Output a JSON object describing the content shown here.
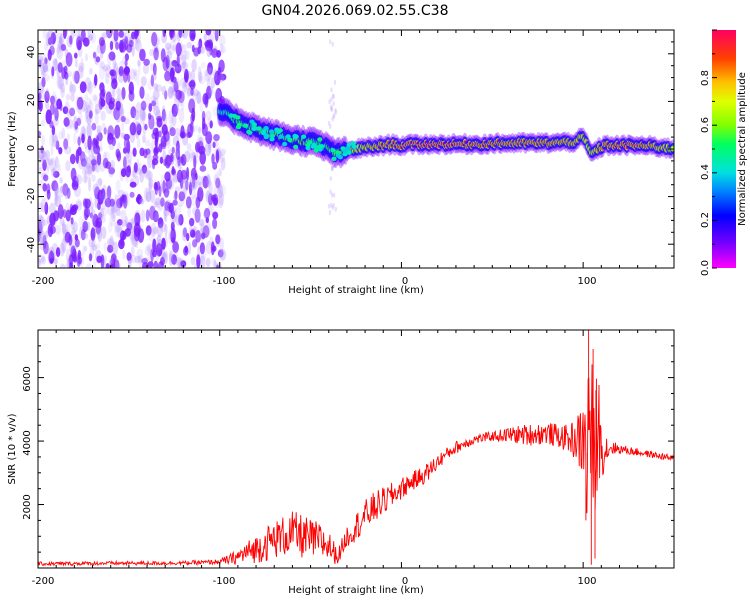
{
  "title": "GN04.2026.069.02.55.C38",
  "chart_data": [
    {
      "type": "heatmap",
      "xlabel": "Height of straight line (km)",
      "ylabel": "Frequency (Hz)",
      "xlim": [
        -200,
        150
      ],
      "ylim": [
        -50,
        50
      ],
      "x_ticks": [
        "-200",
        "-100",
        "0",
        "100"
      ],
      "y_ticks": [
        "-40",
        "-20",
        "0",
        "20",
        "40"
      ],
      "colorbar": {
        "label": "Normalized spectral amplitude",
        "range": [
          0,
          1
        ],
        "ticks": [
          "0.0",
          "0.2",
          "0.4",
          "0.6",
          "0.8"
        ]
      },
      "noise_region_x": [
        -200,
        -100
      ],
      "ridge": {
        "x": [
          -100,
          -95,
          -90,
          -85,
          -80,
          -75,
          -70,
          -65,
          -60,
          -55,
          -50,
          -45,
          -40,
          -35,
          -30,
          -25,
          -20,
          -15,
          -10,
          -5,
          0,
          10,
          20,
          40,
          60,
          80,
          95,
          100,
          103,
          105,
          108,
          112,
          120,
          130,
          140,
          150
        ],
        "freq": [
          16,
          14,
          12,
          10,
          8.5,
          7,
          6,
          5,
          4,
          3.5,
          3,
          2,
          0,
          -2,
          -1,
          0,
          0.5,
          1,
          1.5,
          2,
          1.5,
          2,
          2,
          2,
          2.5,
          2.5,
          3,
          5,
          0,
          -2,
          0,
          1.5,
          1.5,
          1.5,
          1,
          0
        ],
        "amplitude": [
          0.45,
          0.5,
          0.55,
          0.55,
          0.55,
          0.6,
          0.6,
          0.55,
          0.6,
          0.6,
          0.55,
          0.5,
          0.55,
          0.6,
          0.65,
          0.7,
          0.75,
          0.8,
          0.85,
          0.85,
          0.9,
          0.95,
          0.95,
          0.9,
          0.85,
          0.85,
          0.8,
          0.75,
          0.7,
          0.75,
          0.8,
          0.85,
          0.9,
          0.9,
          0.8,
          0.7
        ]
      }
    },
    {
      "type": "line",
      "xlabel": "Height of straight line (km)",
      "ylabel": "SNR (10 * v/v)",
      "xlim": [
        -200,
        150
      ],
      "ylim": [
        0,
        7500
      ],
      "x_ticks": [
        "-200",
        "-100",
        "0",
        "100"
      ],
      "y_ticks": [
        "2000",
        "4000",
        "6000"
      ],
      "color": "#ff0000",
      "series": [
        {
          "x": [
            -200,
            -180,
            -160,
            -140,
            -120,
            -110,
            -100,
            -95,
            -90,
            -85,
            -80,
            -75,
            -70,
            -65,
            -60,
            -55,
            -50,
            -45,
            -40,
            -35,
            -30,
            -25,
            -20,
            -15,
            -10,
            -5,
            0,
            5,
            10,
            15,
            20,
            25,
            30,
            40,
            50,
            60,
            70,
            80,
            90,
            95,
            100,
            102,
            104,
            106,
            108,
            110,
            115,
            120,
            130,
            140,
            150
          ],
          "y": [
            130,
            140,
            150,
            150,
            160,
            170,
            200,
            260,
            350,
            500,
            600,
            750,
            900,
            1000,
            1100,
            1000,
            900,
            850,
            700,
            350,
            1000,
            1300,
            1650,
            1900,
            2100,
            2300,
            2500,
            2700,
            2850,
            3050,
            3350,
            3600,
            3800,
            4050,
            4150,
            4200,
            4200,
            4250,
            4100,
            4050,
            4000,
            3500,
            5200,
            2500,
            4800,
            3700,
            3800,
            3750,
            3650,
            3550,
            3450
          ],
          "noise_amplitude": [
            60,
            60,
            60,
            60,
            60,
            70,
            80,
            150,
            250,
            350,
            450,
            550,
            600,
            650,
            700,
            700,
            650,
            600,
            500,
            250,
            350,
            450,
            500,
            500,
            450,
            400,
            350,
            300,
            300,
            300,
            250,
            200,
            200,
            150,
            150,
            250,
            350,
            350,
            400,
            600,
            1200,
            2500,
            3000,
            2500,
            2000,
            900,
            250,
            150,
            120,
            100,
            100
          ]
        }
      ]
    }
  ]
}
